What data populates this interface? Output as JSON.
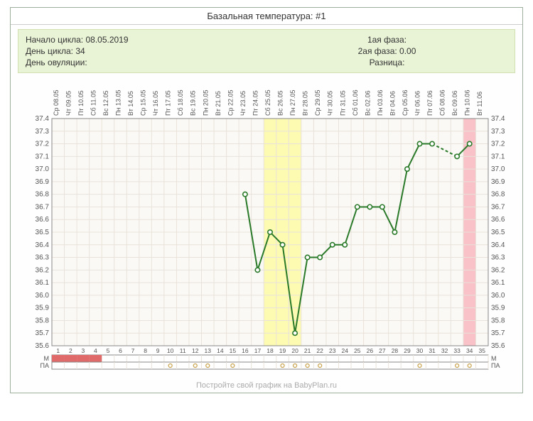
{
  "title": "Базальная температура: #1",
  "info": {
    "cycle_start_label": "Начало цикла:",
    "cycle_start": "08.05.2019",
    "cycle_day_label": "День цикла:",
    "cycle_day": "34",
    "ovulation_day_label": "День овуляции:",
    "ovulation_day": "",
    "phase1_label": "1ая фаза:",
    "phase1": "",
    "phase2_label": "2ая фаза:",
    "phase2": "0.00",
    "diff_label": "Разница:",
    "diff": ""
  },
  "footer": "Постройте свой график на BabyPlan.ru",
  "chart": {
    "type": "line",
    "ylim": [
      35.6,
      37.4
    ],
    "ytick_step": 0.1,
    "n_days": 35,
    "x_labels": [
      "Ср 08.05",
      "Чт 09.05",
      "Пт 10.05",
      "Сб 11.05",
      "Вс 12.05",
      "Пн 13.05",
      "Вт 14.05",
      "Ср 15.05",
      "Чт 16.05",
      "Пт 17.05",
      "Сб 18.05",
      "Вс 19.05",
      "Пн 20.05",
      "Вт 21.05",
      "Ср 22.05",
      "Чт 23.05",
      "Пт 24.05",
      "Сб 25.05",
      "Вс 26.05",
      "Пн 27.05",
      "Вт 28.05",
      "Ср 29.05",
      "Чт 30.05",
      "Пт 31.05",
      "Сб 01.06",
      "Вс 02.06",
      "Пн 03.06",
      "Вт 04.06",
      "Ср 05.06",
      "Чт 06.06",
      "Пт 07.06",
      "Сб 08.06",
      "Вс 09.06",
      "Пн 10.06",
      "Вт 11.06"
    ],
    "series": [
      {
        "day": 16,
        "temp": 36.8
      },
      {
        "day": 17,
        "temp": 36.2
      },
      {
        "day": 18,
        "temp": 36.5
      },
      {
        "day": 19,
        "temp": 36.4
      },
      {
        "day": 20,
        "temp": 35.7
      },
      {
        "day": 21,
        "temp": 36.3
      },
      {
        "day": 22,
        "temp": 36.3
      },
      {
        "day": 23,
        "temp": 36.4
      },
      {
        "day": 24,
        "temp": 36.4
      },
      {
        "day": 25,
        "temp": 36.7
      },
      {
        "day": 26,
        "temp": 36.7
      },
      {
        "day": 27,
        "temp": 36.7
      },
      {
        "day": 28,
        "temp": 36.5
      },
      {
        "day": 29,
        "temp": 37.0
      },
      {
        "day": 30,
        "temp": 37.2
      },
      {
        "day": 31,
        "temp": 37.2
      },
      {
        "day": 33,
        "temp": 37.1,
        "gap_before": true
      },
      {
        "day": 34,
        "temp": 37.2
      }
    ],
    "highlight_bands": [
      {
        "from": 18,
        "to": 20,
        "color": "#fdfab2"
      },
      {
        "from": 34,
        "to": 34,
        "color": "#f9c2c8"
      }
    ],
    "menstruation_days": [
      1,
      2,
      3,
      4
    ],
    "pa_days": [
      10,
      12,
      13,
      15,
      19,
      20,
      21,
      22,
      30,
      33,
      34
    ],
    "row_m_label": "М",
    "row_pa_label": "ПА",
    "colors": {
      "line": "#2a7a2a",
      "marker": "#ffffff",
      "marker_stroke": "#2a7a2a",
      "grid_major": "#d8d0c8",
      "grid_minor": "#e8e2da",
      "plot_bg": "#fbf9f5",
      "axis": "#888",
      "menstr": "#e06a6a",
      "pa": "#c8a24a"
    },
    "font_axis": 10
  }
}
